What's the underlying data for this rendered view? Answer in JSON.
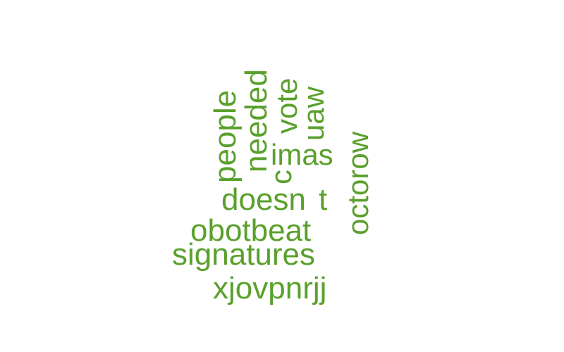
{
  "word_color": "#5aa02c",
  "words": {
    "people": "people",
    "needed": "needed",
    "vote": "vote",
    "uaw": "uaw",
    "c": "c",
    "imas": "imas",
    "octorow": "octorow",
    "doesn": "doesn",
    "t": "t",
    "obotbeat": "obotbeat",
    "signatures": "signatures",
    "xjovpnrjj": "xjovpnrjj"
  }
}
